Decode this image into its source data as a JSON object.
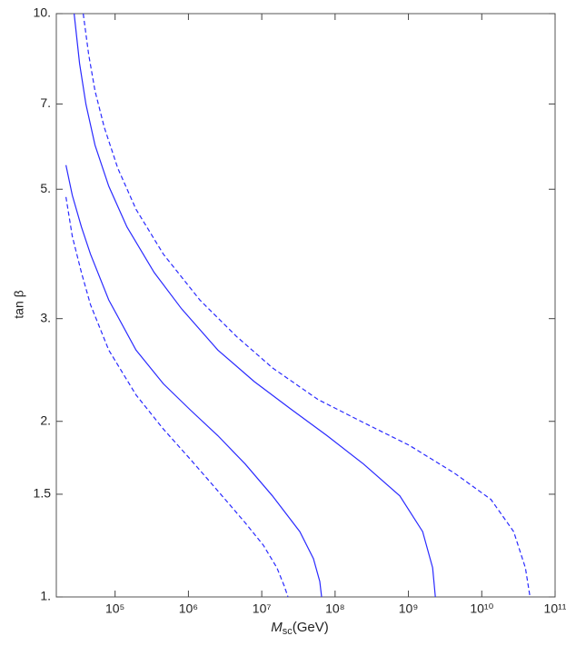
{
  "chart_data": {
    "type": "line",
    "x_log": true,
    "y_log": true,
    "y_label": "tan β",
    "x_label": {
      "main": "M",
      "sub": "sc",
      "unit": "(GeV)"
    },
    "xlim": [
      15800,
      100000000000
    ],
    "ylim": [
      1,
      10
    ],
    "xticks": [
      {
        "value": 100000,
        "label": "10⁵"
      },
      {
        "value": 1000000,
        "label": "10⁶"
      },
      {
        "value": 10000000,
        "label": "10⁷"
      },
      {
        "value": 100000000,
        "label": "10⁸"
      },
      {
        "value": 1000000000,
        "label": "10⁹"
      },
      {
        "value": 10000000000,
        "label": "10¹⁰"
      },
      {
        "value": 100000000000,
        "label": "10¹¹"
      }
    ],
    "yticks": [
      {
        "value": 1,
        "label": "1."
      },
      1.5,
      {
        "value": 2,
        "label": "2."
      },
      {
        "value": 3,
        "label": "3."
      },
      {
        "value": 5,
        "label": "5."
      },
      {
        "value": 7,
        "label": "7."
      },
      {
        "value": 10,
        "label": "10."
      }
    ],
    "series": [
      {
        "color": "#2a2aff",
        "dashed": true,
        "x": [
          21380,
          26100,
          34760,
          46240,
          81850,
          192800,
          455000,
          1070000,
          2520000,
          5940000,
          10500000,
          16100000,
          20300000,
          22800000
        ],
        "values": [
          4.85,
          4.15,
          3.6,
          3.17,
          2.65,
          2.22,
          1.94,
          1.72,
          1.52,
          1.34,
          1.227,
          1.122,
          1.044,
          1
        ]
      },
      {
        "color": "#2a2aff",
        "dashed": false,
        "x": [
          21380,
          26100,
          34760,
          46240,
          81850,
          192800,
          455000,
          1070000,
          2520000,
          5940000,
          14000000,
          33000000,
          50700000,
          61900000,
          65500000
        ],
        "values": [
          5.5,
          4.88,
          4.31,
          3.87,
          3.23,
          2.65,
          2.32,
          2.09,
          1.89,
          1.69,
          1.49,
          1.294,
          1.163,
          1.063,
          1
        ]
      },
      {
        "color": "#2a2aff",
        "dashed": false,
        "x": [
          27670,
          32810,
          40090,
          53330,
          81850,
          144900,
          341400,
          805400,
          2520000,
          7910000,
          24800000,
          77800000,
          244000000,
          764000000,
          1560000000,
          2140000000,
          2330000000
        ],
        "values": [
          10,
          8.21,
          6.99,
          5.95,
          5.06,
          4.31,
          3.6,
          3.12,
          2.65,
          2.34,
          2.1,
          1.89,
          1.69,
          1.49,
          1.294,
          1.122,
          1
        ]
      },
      {
        "color": "#2a2aff",
        "dashed": true,
        "x": [
          36810,
          43650,
          53330,
          70960,
          108900,
          192800,
          455000,
          1430000,
          4470000,
          14000000,
          58500000,
          244000000,
          1020000000,
          4250000000,
          13300000000,
          27200000000,
          39400000000,
          45500000000
        ],
        "values": [
          10,
          8.51,
          7.37,
          6.39,
          5.43,
          4.62,
          3.87,
          3.23,
          2.8,
          2.47,
          2.18,
          1.99,
          1.82,
          1.63,
          1.47,
          1.294,
          1.122,
          1
        ]
      }
    ]
  }
}
